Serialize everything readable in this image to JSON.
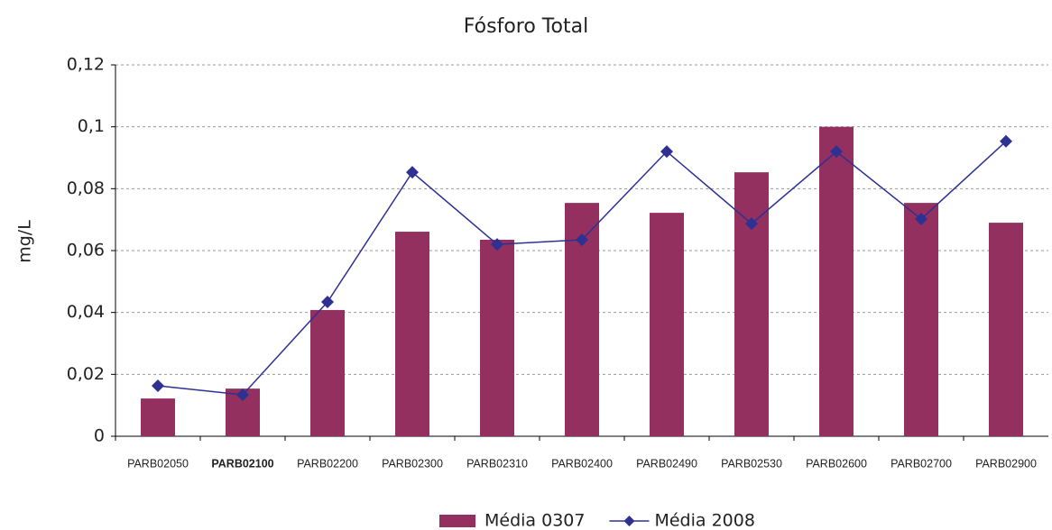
{
  "chart_data": {
    "type": "bar",
    "title": "Fósforo Total",
    "y_label": "mg/L",
    "categories": [
      "PARB02050",
      "PARB02100",
      "PARB02200",
      "PARB02300",
      "PARB02310",
      "PARB02400",
      "PARB02490",
      "PARB02530",
      "PARB02600",
      "PARB02700",
      "PARB02900"
    ],
    "series": [
      {
        "name": "Média 0307",
        "type": "bar",
        "color": "#93305f",
        "values": [
          0.0122,
          0.0154,
          0.0408,
          0.0661,
          0.0635,
          0.0754,
          0.0722,
          0.0853,
          0.1,
          0.0754,
          0.069
        ]
      },
      {
        "name": "Média 2008",
        "type": "line",
        "color": "#2e3192",
        "values": [
          0.0163,
          0.0134,
          0.0434,
          0.0853,
          0.062,
          0.0635,
          0.092,
          0.0687,
          0.092,
          0.0702,
          0.0953
        ]
      }
    ],
    "ylim": [
      0,
      0.12
    ],
    "yticks": [
      0,
      {
        "value": 0.02,
        "label": "0,02"
      },
      {
        "value": 0.04,
        "label": "0,04"
      },
      {
        "value": 0.06,
        "label": "0,06"
      },
      {
        "value": 0.08,
        "label": "0,08"
      },
      {
        "value": 0.1,
        "label": "0,1"
      },
      {
        "value": 0.12,
        "label": "0,12"
      }
    ],
    "grid": true
  }
}
